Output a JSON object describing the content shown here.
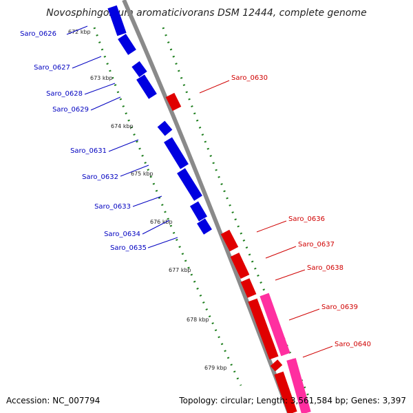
{
  "title": "Novosphingobium aromaticivorans DSM 12444, complete genome",
  "footer": {
    "accession": "Accession: NC_007794",
    "info": "Topology: circular; Length: 3,561,584 bp; Genes: 3,397"
  },
  "colors": {
    "backbone": "#8a8a8a",
    "forward_gene": "#e00000",
    "forward_gene_alt": "#ff2fa0",
    "reverse_gene": "#0000e0",
    "ticks": "#1f7f1f",
    "forward_label": "#d00000",
    "reverse_label": "#0000c0"
  },
  "ticks": [
    "672 kbp",
    "673 kbp",
    "674 kbp",
    "675 kbp",
    "676 kbp",
    "677 kbp",
    "678 kbp",
    "679 kbp"
  ],
  "reverse_genes": [
    "Saro_0626",
    "Saro_0627",
    "Saro_0628",
    "Saro_0629",
    "Saro_0631",
    "Saro_0632",
    "Saro_0633",
    "Saro_0634",
    "Saro_0635"
  ],
  "forward_genes": [
    "Saro_0630",
    "Saro_0636",
    "Saro_0637",
    "Saro_0638",
    "Saro_0639",
    "Saro_0640"
  ]
}
